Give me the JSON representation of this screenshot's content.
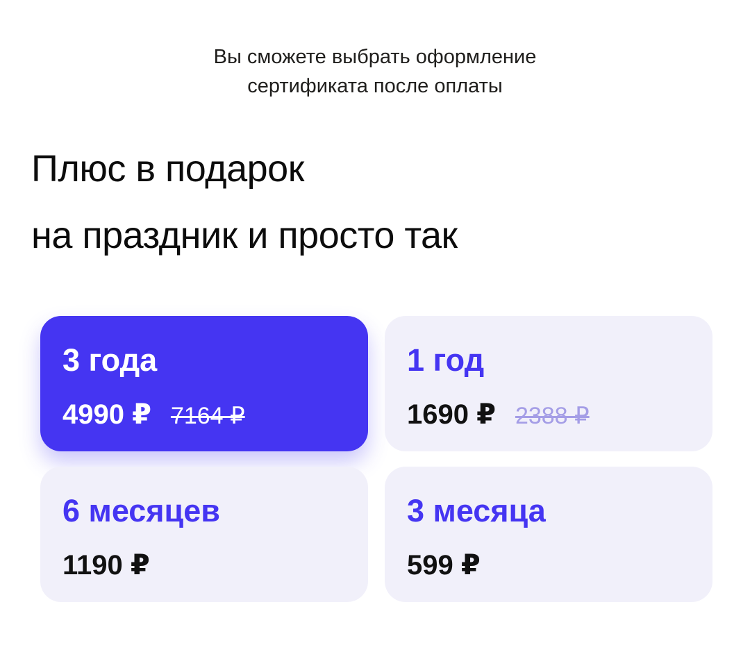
{
  "note": {
    "line1": "Вы сможете выбрать оформление",
    "line2": "сертификата после оплаты"
  },
  "title": {
    "line1": "Плюс в подарок",
    "line2": "на праздник и просто так"
  },
  "currency_symbol": "₽",
  "plans": [
    {
      "label": "3 года",
      "price": "4990 ₽",
      "old_price": "7164 ₽",
      "selected": true
    },
    {
      "label": "1 год",
      "price": "1690 ₽",
      "old_price": "2388 ₽",
      "selected": false
    },
    {
      "label": "6 месяцев",
      "price": "1190 ₽",
      "old_price": "",
      "selected": false
    },
    {
      "label": "3 месяца",
      "price": "599 ₽",
      "old_price": "",
      "selected": false
    }
  ],
  "colors": {
    "accent": "#4535f2",
    "card_bg": "#f1f0fa",
    "old_price_light": "#a49de6",
    "selected_text": "#ffffff",
    "text": "#111111"
  }
}
